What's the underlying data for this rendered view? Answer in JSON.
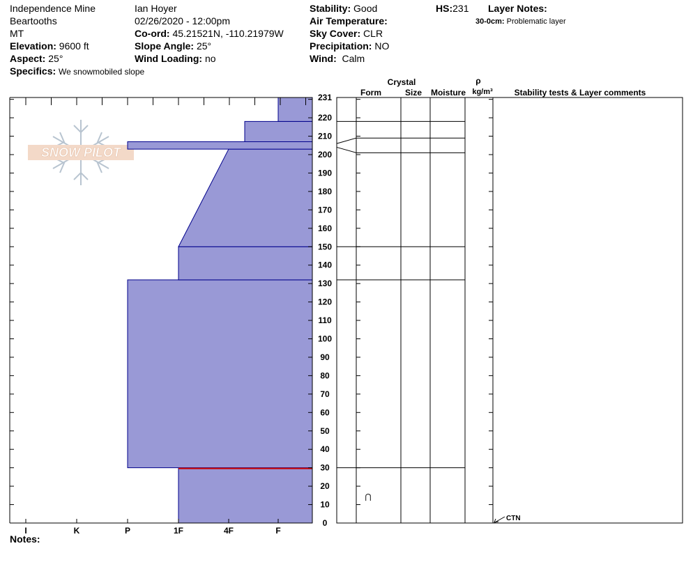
{
  "header": {
    "location": "Independence Mine",
    "range": "Beartooths",
    "state": "MT",
    "elevation_label": "Elevation:",
    "elevation_value": "9600 ft",
    "aspect_label": "Aspect:",
    "aspect_value": "25°",
    "specifics_label": "Specifics:",
    "specifics_value": "We snowmobiled slope",
    "observer": "Ian Hoyer",
    "datetime": "02/26/2020 - 12:00pm",
    "coord_label": "Co-ord:",
    "coord_value": "45.21521N, -110.21979W",
    "slope_label": "Slope Angle:",
    "slope_value": "25°",
    "windload_label": "Wind Loading:",
    "windload_value": "no",
    "stability_label": "Stability:",
    "stability_value": "Good",
    "airtemp_label": "Air Temperature:",
    "airtemp_value": "",
    "sky_label": "Sky Cover:",
    "sky_value": "CLR",
    "precip_label": "Precipitation:",
    "precip_value": "NO",
    "wind_label": "Wind:",
    "wind_value": "Calm",
    "hs_label": "HS:",
    "hs_value": "231",
    "layernotes_label": "Layer Notes:",
    "layernote_depth": "30-0cm:",
    "layernote_text": "Problematic layer"
  },
  "logo_text": "SNOW PILOT",
  "notes_label": "Notes:",
  "columns": {
    "crystal": "Crystal",
    "form": "Form",
    "size": "Size",
    "moisture": "Moisture",
    "rho": "ρ",
    "density_unit": "kg/m³",
    "stability": "Stability tests & Layer comments"
  },
  "layer_symbol": "⋂",
  "stability_test": "CTN",
  "colors": {
    "fill": "#9999d6",
    "stroke": "#00008b",
    "problem_line": "#cc0000"
  },
  "chart_data": {
    "type": "area",
    "xaxis_categories": [
      "I",
      "K",
      "P",
      "1F",
      "4F",
      "F"
    ],
    "yaxis_ticks": [
      0,
      10,
      20,
      30,
      40,
      50,
      60,
      70,
      80,
      90,
      100,
      110,
      120,
      130,
      140,
      150,
      160,
      170,
      180,
      190,
      200,
      210,
      220,
      231
    ],
    "ylim": [
      0,
      231
    ],
    "hardness_profile": [
      {
        "bottom": 0,
        "top": 30,
        "hardness_bottom": "1F",
        "hardness_top": "1F"
      },
      {
        "bottom": 30,
        "top": 132,
        "hardness_bottom": "P",
        "hardness_top": "P"
      },
      {
        "bottom": 132,
        "top": 150,
        "hardness_bottom": "1F",
        "hardness_top": "1F"
      },
      {
        "bottom": 150,
        "top": 203,
        "hardness_bottom": "1F",
        "hardness_top": "4F"
      },
      {
        "bottom": 203,
        "top": 207,
        "hardness_bottom": "P",
        "hardness_top": "P"
      },
      {
        "bottom": 207,
        "top": 218,
        "hardness_bottom": "4F+",
        "hardness_top": "4F+"
      },
      {
        "bottom": 218,
        "top": 231,
        "hardness_bottom": "F+",
        "hardness_top": "F+"
      }
    ],
    "layer_boundaries": [
      231,
      218,
      209,
      201,
      150,
      132,
      30
    ],
    "problematic_layer_depth": 30,
    "stability_test_depth": 0
  }
}
